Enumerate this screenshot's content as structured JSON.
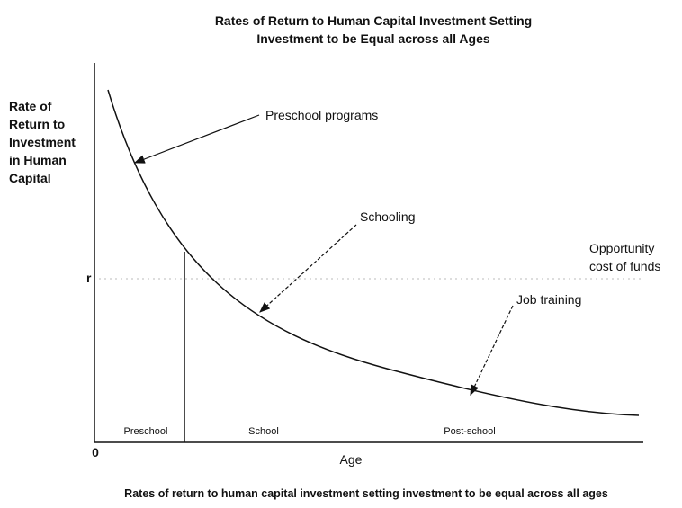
{
  "title": [
    "Rates of Return to Human Capital Investment Setting",
    "Investment to be Equal across all Ages"
  ],
  "y_axis_label": [
    "Rate of",
    "Return to",
    "Investment",
    "in Human",
    "Capital"
  ],
  "x_axis_label": "Age",
  "origin": "0",
  "r_label": "r",
  "annotations": {
    "preschool_programs": "Preschool programs",
    "schooling": "Schooling",
    "job_training": "Job training",
    "opportunity_cost": [
      "Opportunity",
      "cost of funds"
    ]
  },
  "regions": [
    "Preschool",
    "School",
    "Post-school"
  ],
  "caption": "Rates of return to human capital investment setting investment to be equal across all ages"
}
